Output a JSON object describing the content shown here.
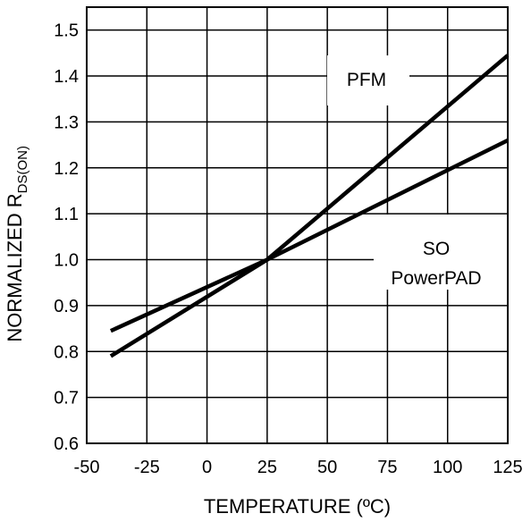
{
  "chart_data": {
    "type": "line",
    "xlabel": "TEMPERATURE (ºC)",
    "ylabel_main": "NORMALIZED R",
    "ylabel_sub": "DS(ON)",
    "xlim": [
      -50,
      125
    ],
    "ylim": [
      0.6,
      1.55
    ],
    "x_ticks": [
      "-50",
      "-25",
      "0",
      "25",
      "50",
      "75",
      "100",
      "125"
    ],
    "y_ticks": [
      "0.6",
      "0.7",
      "0.8",
      "0.9",
      "1.0",
      "1.1",
      "1.2",
      "1.3",
      "1.4",
      "1.5"
    ],
    "grid": true,
    "series": [
      {
        "name": "PFM",
        "x": [
          -40,
          25,
          125
        ],
        "y": [
          0.79,
          1.0,
          1.445
        ]
      },
      {
        "name": "SO PowerPAD",
        "x": [
          -40,
          25,
          125
        ],
        "y": [
          0.845,
          1.0,
          1.26
        ]
      }
    ],
    "annotations": [
      {
        "text": "PFM",
        "series": "PFM"
      },
      {
        "text_lines": [
          "SO",
          "PowerPAD"
        ],
        "series": "SO PowerPAD"
      }
    ]
  }
}
